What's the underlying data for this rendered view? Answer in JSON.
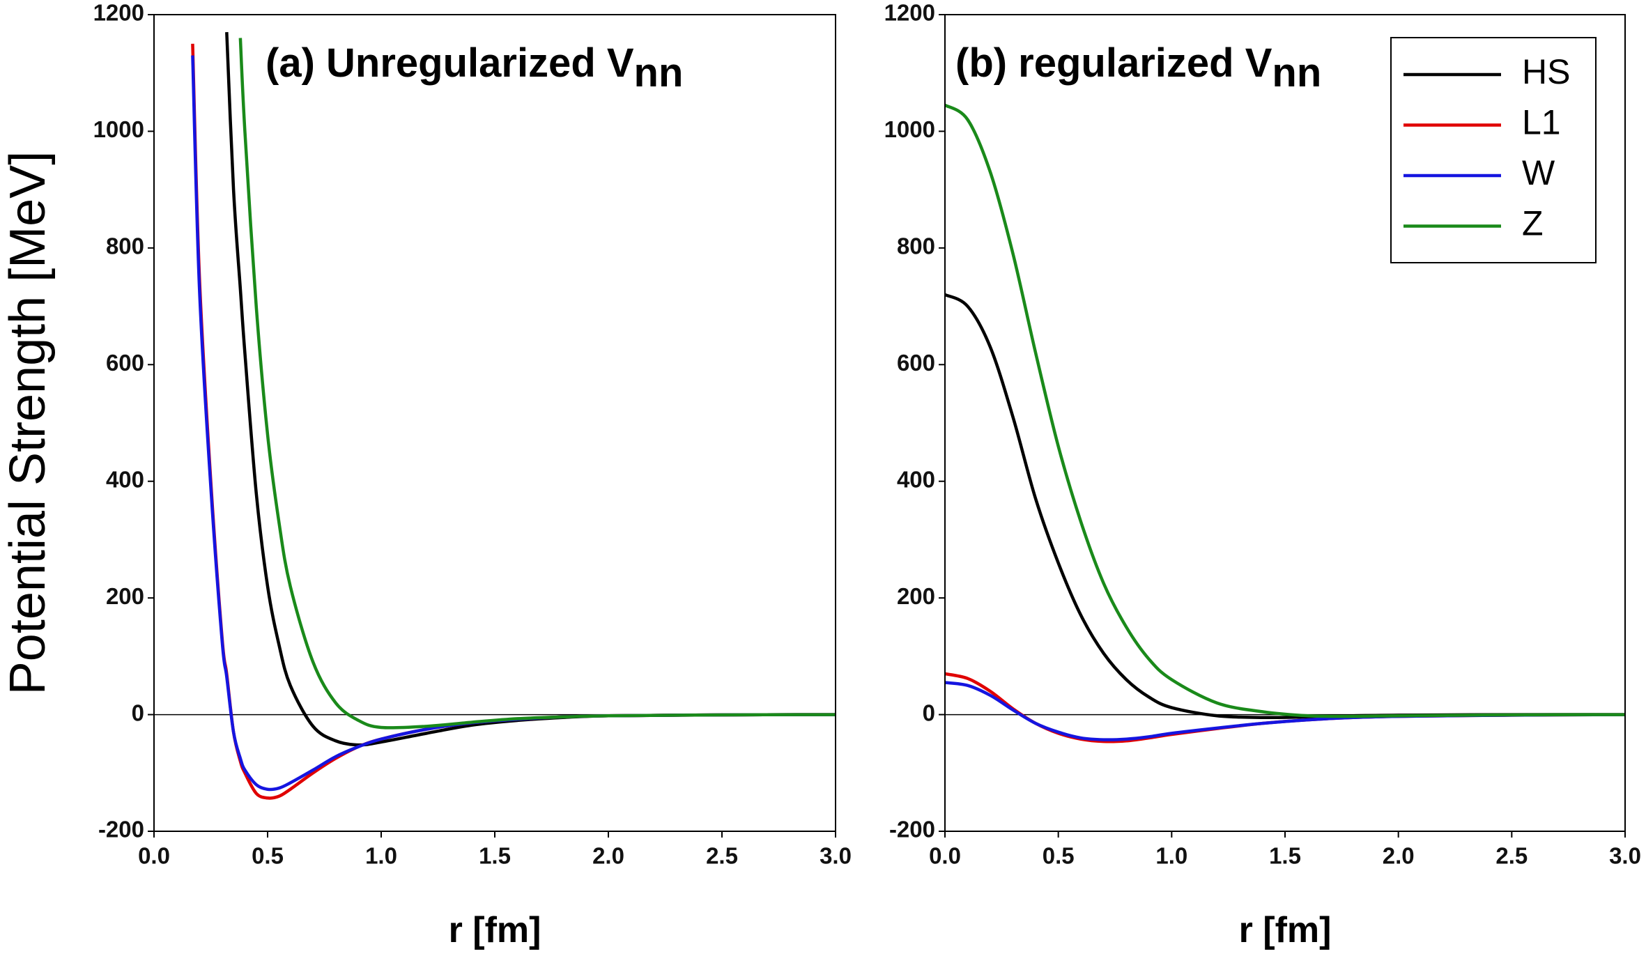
{
  "chart_data": [
    {
      "type": "line",
      "title": "(a) Unregularized V",
      "title_subscript": "nn",
      "ylabel": "Potential Strength [MeV]",
      "xlabel": "r [fm]",
      "x": [
        0.17,
        0.2,
        0.25,
        0.3,
        0.32,
        0.35,
        0.38,
        0.4,
        0.45,
        0.5,
        0.55,
        0.6,
        0.7,
        0.8,
        0.9,
        1.0,
        1.2,
        1.4,
        1.6,
        1.8,
        2.0,
        2.5,
        3.0
      ],
      "series": [
        {
          "name": "HS",
          "color": "#000000",
          "values": [
            null,
            null,
            null,
            null,
            1170,
            900,
            730,
            620,
            380,
            220,
            120,
            50,
            -20,
            -45,
            -52,
            -47,
            -32,
            -18,
            -10,
            -5,
            -2,
            -0.5,
            0
          ]
        },
        {
          "name": "L1",
          "color": "#e00000",
          "values": [
            1150,
            750,
            400,
            130,
            70,
            -30,
            -80,
            -100,
            -135,
            -143,
            -140,
            -128,
            -100,
            -75,
            -55,
            -42,
            -25,
            -14,
            -8,
            -4,
            -2,
            -0.5,
            0
          ]
        },
        {
          "name": "W",
          "color": "#1515e0",
          "values": [
            1130,
            730,
            390,
            125,
            65,
            -30,
            -75,
            -95,
            -120,
            -128,
            -126,
            -117,
            -95,
            -72,
            -55,
            -42,
            -25,
            -14,
            -8,
            -4,
            -2,
            -0.5,
            0
          ]
        },
        {
          "name": "Z",
          "color": "#1a8a1a",
          "values": [
            null,
            null,
            null,
            null,
            null,
            null,
            1160,
            1000,
            700,
            480,
            330,
            220,
            90,
            20,
            -10,
            -22,
            -20,
            -13,
            -7,
            -4,
            -2,
            -0.5,
            0
          ]
        }
      ],
      "xlim": [
        0,
        3
      ],
      "ylim": [
        -200,
        1200
      ],
      "xticks": [
        {
          "value": 0,
          "label": "0.0"
        },
        0.5,
        {
          "value": 1,
          "label": "1.0"
        },
        1.5,
        {
          "value": 2,
          "label": "2.0"
        },
        2.5,
        {
          "value": 3,
          "label": "3.0"
        }
      ],
      "yticks": [
        -200,
        0,
        200,
        400,
        600,
        800,
        1000,
        1200
      ],
      "zero_line": true
    },
    {
      "type": "line",
      "title": "(b) regularized V",
      "title_subscript": "nn",
      "xlabel": "r [fm]",
      "x": [
        0,
        0.1,
        0.2,
        0.3,
        0.4,
        0.5,
        0.6,
        0.7,
        0.8,
        0.9,
        1.0,
        1.2,
        1.4,
        1.6,
        1.8,
        2.0,
        2.5,
        3.0
      ],
      "series": [
        {
          "name": "HS",
          "color": "#000000",
          "values": [
            720,
            700,
            630,
            510,
            370,
            260,
            170,
            105,
            60,
            30,
            12,
            -2,
            -5,
            -4,
            -2,
            -1,
            0,
            0
          ]
        },
        {
          "name": "L1",
          "color": "#e00000",
          "values": [
            70,
            62,
            40,
            10,
            -15,
            -32,
            -42,
            -46,
            -45,
            -40,
            -34,
            -24,
            -15,
            -9,
            -5,
            -3,
            -1,
            0
          ]
        },
        {
          "name": "W",
          "color": "#1515e0",
          "values": [
            55,
            50,
            33,
            8,
            -15,
            -30,
            -40,
            -43,
            -42,
            -38,
            -32,
            -23,
            -15,
            -9,
            -5,
            -3,
            -1,
            0
          ]
        },
        {
          "name": "Z",
          "color": "#1a8a1a",
          "values": [
            1045,
            1020,
            930,
            790,
            620,
            460,
            330,
            225,
            150,
            95,
            60,
            20,
            5,
            -2,
            -3,
            -2,
            -0.5,
            0
          ]
        }
      ],
      "xlim": [
        0,
        3
      ],
      "ylim": [
        -200,
        1200
      ],
      "xticks": [
        {
          "value": 0,
          "label": "0.0"
        },
        0.5,
        {
          "value": 1,
          "label": "1.0"
        },
        1.5,
        {
          "value": 2,
          "label": "2.0"
        },
        2.5,
        {
          "value": 3,
          "label": "3.0"
        }
      ],
      "yticks": [
        -200,
        0,
        200,
        400,
        600,
        800,
        1000,
        1200
      ],
      "zero_line": true,
      "legend": "upper right"
    }
  ]
}
